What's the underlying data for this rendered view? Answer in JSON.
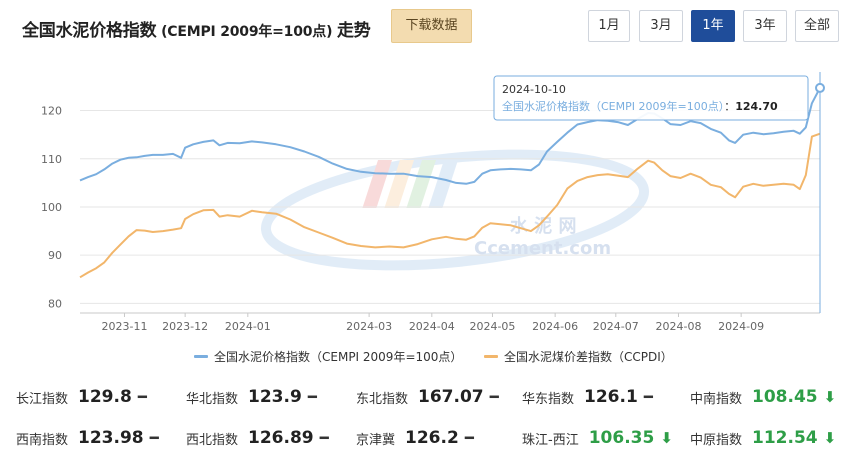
{
  "header": {
    "title_main": "全国水泥价格指数",
    "title_sub": " (CEMPI 2009年=100点) ",
    "title_tail": "走势",
    "download_label": "下载数据",
    "ranges": [
      "1月",
      "3月",
      "1年",
      "3年",
      "全部"
    ],
    "active_range": "1年"
  },
  "tooltip": {
    "date": "2024-10-10",
    "series": "全国水泥价格指数（CEMPI 2009年=100点）",
    "value": "124.70"
  },
  "watermark": {
    "cn": "水  泥  网",
    "en": "Ccement.com"
  },
  "chart_data": {
    "type": "line",
    "xlabel": "",
    "ylabel": "",
    "ylim": [
      78,
      128
    ],
    "yticks": [
      80,
      90,
      100,
      110,
      120
    ],
    "x_range": [
      "2023-10-10",
      "2024-10-10"
    ],
    "xticks": [
      "2023-11",
      "2023-12",
      "2024-01",
      "2024-03",
      "2024-04",
      "2024-05",
      "2024-06",
      "2024-07",
      "2024-08",
      "2024-09"
    ],
    "grid": true,
    "legend_position": "bottom",
    "series": [
      {
        "name": "全国水泥价格指数（CEMPI 2009年=100点）",
        "color": "#7aaedf",
        "points": [
          [
            "2023-10-10",
            105.5
          ],
          [
            "2023-10-14",
            106.2
          ],
          [
            "2023-10-18",
            106.8
          ],
          [
            "2023-10-22",
            107.8
          ],
          [
            "2023-10-26",
            109.0
          ],
          [
            "2023-10-30",
            109.8
          ],
          [
            "2023-11-03",
            110.2
          ],
          [
            "2023-11-07",
            110.3
          ],
          [
            "2023-11-11",
            110.6
          ],
          [
            "2023-11-15",
            110.8
          ],
          [
            "2023-11-20",
            110.8
          ],
          [
            "2023-11-25",
            111.0
          ],
          [
            "2023-11-29",
            110.2
          ],
          [
            "2023-12-01",
            112.3
          ],
          [
            "2023-12-05",
            113.0
          ],
          [
            "2023-12-10",
            113.5
          ],
          [
            "2023-12-15",
            113.8
          ],
          [
            "2023-12-18",
            112.8
          ],
          [
            "2023-12-22",
            113.3
          ],
          [
            "2023-12-28",
            113.2
          ],
          [
            "2024-01-03",
            113.6
          ],
          [
            "2024-01-08",
            113.4
          ],
          [
            "2024-01-15",
            113.0
          ],
          [
            "2024-01-22",
            112.4
          ],
          [
            "2024-01-29",
            111.5
          ],
          [
            "2024-02-05",
            110.4
          ],
          [
            "2024-02-12",
            109.0
          ],
          [
            "2024-02-19",
            107.9
          ],
          [
            "2024-02-26",
            107.3
          ],
          [
            "2024-03-04",
            107.0
          ],
          [
            "2024-03-11",
            106.9
          ],
          [
            "2024-03-18",
            106.9
          ],
          [
            "2024-03-25",
            106.4
          ],
          [
            "2024-04-01",
            106.2
          ],
          [
            "2024-04-08",
            105.6
          ],
          [
            "2024-04-13",
            105.0
          ],
          [
            "2024-04-18",
            104.8
          ],
          [
            "2024-04-22",
            105.2
          ],
          [
            "2024-04-26",
            106.9
          ],
          [
            "2024-04-30",
            107.6
          ],
          [
            "2024-05-05",
            107.8
          ],
          [
            "2024-05-10",
            107.9
          ],
          [
            "2024-05-15",
            107.8
          ],
          [
            "2024-05-20",
            107.6
          ],
          [
            "2024-05-24",
            108.8
          ],
          [
            "2024-05-28",
            111.5
          ],
          [
            "2024-06-02",
            113.5
          ],
          [
            "2024-06-07",
            115.4
          ],
          [
            "2024-06-12",
            117.1
          ],
          [
            "2024-06-17",
            117.6
          ],
          [
            "2024-06-22",
            118.0
          ],
          [
            "2024-06-27",
            117.9
          ],
          [
            "2024-07-02",
            117.6
          ],
          [
            "2024-07-07",
            117.0
          ],
          [
            "2024-07-12",
            118.3
          ],
          [
            "2024-07-17",
            119.5
          ],
          [
            "2024-07-20",
            119.4
          ],
          [
            "2024-07-24",
            118.4
          ],
          [
            "2024-07-28",
            117.2
          ],
          [
            "2024-08-02",
            117.0
          ],
          [
            "2024-08-07",
            117.8
          ],
          [
            "2024-08-12",
            117.4
          ],
          [
            "2024-08-17",
            116.2
          ],
          [
            "2024-08-22",
            115.4
          ],
          [
            "2024-08-26",
            113.8
          ],
          [
            "2024-08-29",
            113.3
          ],
          [
            "2024-09-02",
            115.0
          ],
          [
            "2024-09-07",
            115.4
          ],
          [
            "2024-09-12",
            115.1
          ],
          [
            "2024-09-17",
            115.3
          ],
          [
            "2024-09-22",
            115.6
          ],
          [
            "2024-09-27",
            115.8
          ],
          [
            "2024-09-30",
            115.2
          ],
          [
            "2024-10-03",
            116.5
          ],
          [
            "2024-10-06",
            121.5
          ],
          [
            "2024-10-10",
            124.7
          ]
        ]
      },
      {
        "name": "全国水泥煤价差指数（CCPDI）",
        "color": "#f2b66b",
        "points": [
          [
            "2023-10-10",
            85.4
          ],
          [
            "2023-10-14",
            86.4
          ],
          [
            "2023-10-18",
            87.3
          ],
          [
            "2023-10-22",
            88.5
          ],
          [
            "2023-10-26",
            90.5
          ],
          [
            "2023-10-30",
            92.2
          ],
          [
            "2023-11-03",
            93.9
          ],
          [
            "2023-11-07",
            95.2
          ],
          [
            "2023-11-11",
            95.1
          ],
          [
            "2023-11-15",
            94.8
          ],
          [
            "2023-11-20",
            95.0
          ],
          [
            "2023-11-25",
            95.3
          ],
          [
            "2023-11-29",
            95.6
          ],
          [
            "2023-12-01",
            97.5
          ],
          [
            "2023-12-05",
            98.5
          ],
          [
            "2023-12-10",
            99.3
          ],
          [
            "2023-12-15",
            99.4
          ],
          [
            "2023-12-18",
            98.0
          ],
          [
            "2023-12-22",
            98.3
          ],
          [
            "2023-12-28",
            98.0
          ],
          [
            "2024-01-03",
            99.2
          ],
          [
            "2024-01-08",
            98.9
          ],
          [
            "2024-01-15",
            98.6
          ],
          [
            "2024-01-22",
            97.4
          ],
          [
            "2024-01-29",
            95.8
          ],
          [
            "2024-02-05",
            94.7
          ],
          [
            "2024-02-12",
            93.6
          ],
          [
            "2024-02-19",
            92.4
          ],
          [
            "2024-02-26",
            91.9
          ],
          [
            "2024-03-04",
            91.6
          ],
          [
            "2024-03-11",
            91.8
          ],
          [
            "2024-03-18",
            91.6
          ],
          [
            "2024-03-25",
            92.3
          ],
          [
            "2024-04-01",
            93.3
          ],
          [
            "2024-04-08",
            93.8
          ],
          [
            "2024-04-13",
            93.4
          ],
          [
            "2024-04-18",
            93.2
          ],
          [
            "2024-04-22",
            93.9
          ],
          [
            "2024-04-26",
            95.7
          ],
          [
            "2024-04-30",
            96.6
          ],
          [
            "2024-05-05",
            96.4
          ],
          [
            "2024-05-10",
            96.2
          ],
          [
            "2024-05-15",
            95.6
          ],
          [
            "2024-05-20",
            95.0
          ],
          [
            "2024-05-24",
            96.2
          ],
          [
            "2024-05-28",
            98.0
          ],
          [
            "2024-06-02",
            100.4
          ],
          [
            "2024-06-07",
            103.8
          ],
          [
            "2024-06-12",
            105.4
          ],
          [
            "2024-06-17",
            106.2
          ],
          [
            "2024-06-22",
            106.6
          ],
          [
            "2024-06-27",
            106.8
          ],
          [
            "2024-07-02",
            106.5
          ],
          [
            "2024-07-07",
            106.2
          ],
          [
            "2024-07-12",
            108.0
          ],
          [
            "2024-07-17",
            109.6
          ],
          [
            "2024-07-20",
            109.2
          ],
          [
            "2024-07-24",
            107.6
          ],
          [
            "2024-07-28",
            106.4
          ],
          [
            "2024-08-02",
            106.0
          ],
          [
            "2024-08-07",
            106.9
          ],
          [
            "2024-08-12",
            106.1
          ],
          [
            "2024-08-17",
            104.6
          ],
          [
            "2024-08-22",
            104.1
          ],
          [
            "2024-08-26",
            102.7
          ],
          [
            "2024-08-29",
            102.0
          ],
          [
            "2024-09-02",
            104.2
          ],
          [
            "2024-09-07",
            104.8
          ],
          [
            "2024-09-12",
            104.4
          ],
          [
            "2024-09-17",
            104.6
          ],
          [
            "2024-09-22",
            104.8
          ],
          [
            "2024-09-27",
            104.6
          ],
          [
            "2024-09-30",
            103.7
          ],
          [
            "2024-10-03",
            106.6
          ],
          [
            "2024-10-06",
            114.6
          ],
          [
            "2024-10-10",
            115.2
          ]
        ]
      }
    ]
  },
  "regional_indices": [
    {
      "name": "长江指数",
      "value": "129.8",
      "trend": "flat"
    },
    {
      "name": "华北指数",
      "value": "123.9",
      "trend": "flat"
    },
    {
      "name": "东北指数",
      "value": "167.07",
      "trend": "flat"
    },
    {
      "name": "华东指数",
      "value": "126.1",
      "trend": "flat"
    },
    {
      "name": "中南指数",
      "value": "108.45",
      "trend": "down"
    },
    {
      "name": "西南指数",
      "value": "123.98",
      "trend": "flat"
    },
    {
      "name": "西北指数",
      "value": "126.89",
      "trend": "flat"
    },
    {
      "name": "京津冀",
      "value": "126.2",
      "trend": "flat"
    },
    {
      "name": "珠江-西江",
      "value": "106.35",
      "trend": "down"
    },
    {
      "name": "中原指数",
      "value": "112.54",
      "trend": "down"
    }
  ],
  "trend_symbols": {
    "flat": "━",
    "down": "⬇"
  }
}
